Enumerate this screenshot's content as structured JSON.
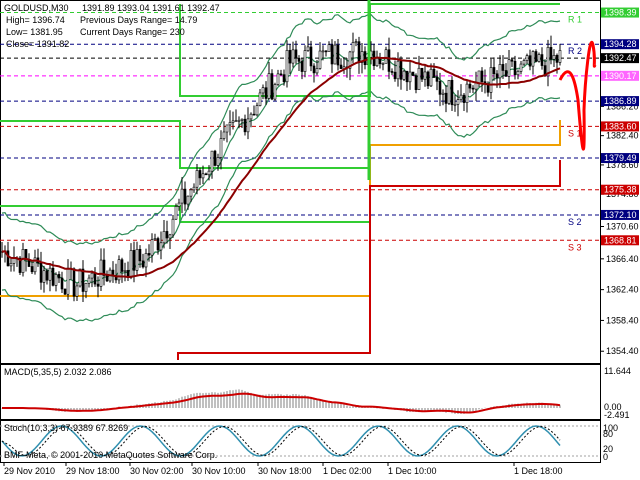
{
  "symbol_header": "GOLDUSD,M30",
  "ohlc_header": "1391.89 1393.04 1391.61 1392.47",
  "info": {
    "high": "High= 1396.74",
    "low": "Low= 1381.95",
    "close": "Close= 1391.82",
    "prev_range": "Previous Days Range= 14.79",
    "cur_range": "Current Days Range= 230"
  },
  "price_axis": {
    "ticks": [
      1386.2,
      1382.4,
      1378.6,
      1374.8,
      1370.6,
      1366.4,
      1362.4,
      1358.4,
      1354.4
    ],
    "ylim": [
      1353.0,
      1399.5
    ]
  },
  "levels": [
    {
      "name": "R 1",
      "value": 1398.39,
      "color": "#32cd32",
      "label_color": "#ffffff",
      "label_bg": "#32cd32"
    },
    {
      "name": "R 2",
      "value": 1394.28,
      "color": "#000080",
      "label_color": "#ffffff",
      "label_bg": "#000080"
    },
    {
      "name": "",
      "value": 1392.47,
      "color": "#000000",
      "label_color": "#ffffff",
      "label_bg": "#000000"
    },
    {
      "name": "",
      "value": 1390.17,
      "color": "#ff00ff",
      "label_color": "#ffffff",
      "label_bg": "#ff66ff"
    },
    {
      "name": "",
      "value": 1386.89,
      "color": "#000080",
      "label_color": "#ffffff",
      "label_bg": "#000080"
    },
    {
      "name": "S 1",
      "value": 1383.6,
      "color": "#cc0000",
      "label_color": "#ffffff",
      "label_bg": "#cc0000"
    },
    {
      "name": "",
      "value": 1379.49,
      "color": "#000080",
      "label_color": "#ffffff",
      "label_bg": "#000080"
    },
    {
      "name": "",
      "value": 1375.38,
      "color": "#cc0000",
      "label_color": "#ffffff",
      "label_bg": "#cc0000"
    },
    {
      "name": "S 2",
      "value": 1372.1,
      "color": "#000080",
      "label_color": "#ffffff",
      "label_bg": "#000080"
    },
    {
      "name": "S 3",
      "value": 1368.81,
      "color": "#cc0000",
      "label_color": "#ffffff",
      "label_bg": "#cc0000"
    }
  ],
  "macd": {
    "title": "MACD(5,35,5) 2.032 2.086",
    "axis": [
      "11.644",
      "0.00",
      "-2.491"
    ]
  },
  "stoch": {
    "title": "Stoch(10,3,3) 67.9389 67.8269",
    "axis": [
      "100",
      "80",
      "20",
      "0"
    ]
  },
  "copyright": "BMF-Meta, © 2001-2010 MetaQuotes Software Corp.",
  "time_axis": [
    "29 Nov 2010",
    "29 Nov 18:00",
    "30 Nov 02:00",
    "30 Nov 10:00",
    "30 Nov 18:00",
    "1 Dec 02:00",
    "1 Dec 10:00",
    "1 Dec 18:00"
  ],
  "colors": {
    "candle": "#000000",
    "ma_long": "#8b0000",
    "bollinger": "#2e8b57",
    "macd_signal": "#cc0000",
    "macd_hist": "#c0c0c0",
    "stoch_main": "#2f8faf",
    "stoch_signal": "#000000",
    "right_spike": "#ff0000"
  },
  "chart_data": {
    "type": "line",
    "title": "GOLDUSD,M30",
    "x": [
      "29 Nov 2010",
      "29 Nov 18:00",
      "30 Nov 02:00",
      "30 Nov 10:00",
      "30 Nov 18:00",
      "1 Dec 02:00",
      "1 Dec 10:00",
      "1 Dec 18:00"
    ],
    "series": [
      {
        "name": "",
        "values": [
          1367.5,
          1363.0,
          1366.5,
          1380.0,
          1392.0,
          1393.5,
          1388.0,
          1392.47
        ]
      }
    ],
    "ylim": [
      1353.0,
      1399.5
    ]
  }
}
